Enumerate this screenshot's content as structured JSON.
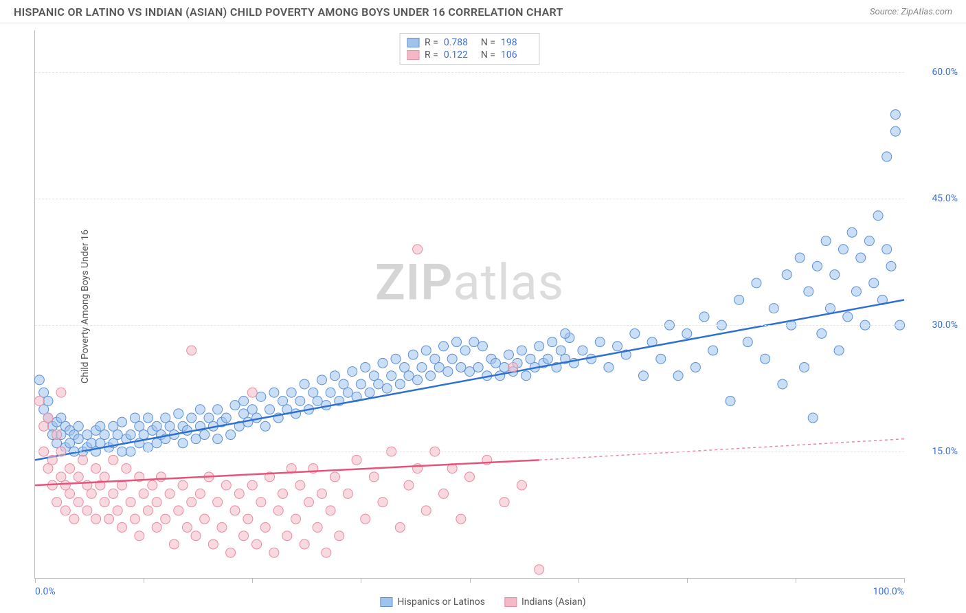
{
  "header": {
    "title": "HISPANIC OR LATINO VS INDIAN (ASIAN) CHILD POVERTY AMONG BOYS UNDER 16 CORRELATION CHART",
    "source_label": "Source:",
    "source_name": "ZipAtlas.com"
  },
  "watermark": {
    "prefix": "ZIP",
    "suffix": "atlas"
  },
  "chart": {
    "type": "scatter",
    "ylabel": "Child Poverty Among Boys Under 16",
    "xlim": [
      0,
      100
    ],
    "ylim": [
      0,
      65
    ],
    "y_ticks": [
      15,
      30,
      45,
      60
    ],
    "y_tick_labels": [
      "15.0%",
      "30.0%",
      "45.0%",
      "60.0%"
    ],
    "x_ticks": [
      0,
      12.5,
      25,
      37.5,
      50,
      62.5,
      75,
      87.5,
      100
    ],
    "x_tick_labels": {
      "0": "0.0%",
      "100": "100.0%"
    },
    "background_color": "#ffffff",
    "grid_color": "#e5e5e5",
    "axis_color": "#bbbbbb",
    "label_fontsize": 14,
    "tick_color": "#3b6fd6",
    "marker_radius": 7,
    "marker_opacity": 0.55,
    "series": [
      {
        "id": "hispanics",
        "label": "Hispanics or Latinos",
        "fill": "#9fc3ec",
        "stroke": "#5a8fd6",
        "R": "0.788",
        "N": "198",
        "trend": {
          "x1": 0,
          "y1": 14,
          "x2": 100,
          "y2": 33,
          "color": "#2f6fd0",
          "width": 2.5
        },
        "points": [
          [
            0.5,
            23.5
          ],
          [
            1,
            22
          ],
          [
            1,
            20
          ],
          [
            1.5,
            19
          ],
          [
            1.5,
            21
          ],
          [
            2,
            18
          ],
          [
            2,
            17
          ],
          [
            2.5,
            18.5
          ],
          [
            2.5,
            16
          ],
          [
            3,
            19
          ],
          [
            3,
            17
          ],
          [
            3.5,
            15.5
          ],
          [
            3.5,
            18
          ],
          [
            4,
            17.5
          ],
          [
            4,
            16
          ],
          [
            4.5,
            17
          ],
          [
            4.5,
            15
          ],
          [
            5,
            18
          ],
          [
            5,
            16.5
          ],
          [
            5.5,
            15
          ],
          [
            6,
            17
          ],
          [
            6,
            15.5
          ],
          [
            6.5,
            16
          ],
          [
            7,
            17.5
          ],
          [
            7,
            15
          ],
          [
            7.5,
            18
          ],
          [
            7.5,
            16
          ],
          [
            8,
            17
          ],
          [
            8.5,
            15.5
          ],
          [
            9,
            18
          ],
          [
            9,
            16
          ],
          [
            9.5,
            17
          ],
          [
            10,
            15
          ],
          [
            10,
            18.5
          ],
          [
            10.5,
            16.5
          ],
          [
            11,
            17
          ],
          [
            11,
            15
          ],
          [
            11.5,
            19
          ],
          [
            12,
            16
          ],
          [
            12,
            18
          ],
          [
            12.5,
            17
          ],
          [
            13,
            15.5
          ],
          [
            13,
            19
          ],
          [
            13.5,
            17.5
          ],
          [
            14,
            16
          ],
          [
            14,
            18
          ],
          [
            14.5,
            17
          ],
          [
            15,
            19
          ],
          [
            15,
            16.5
          ],
          [
            15.5,
            18
          ],
          [
            16,
            17
          ],
          [
            16.5,
            19.5
          ],
          [
            17,
            16
          ],
          [
            17,
            18
          ],
          [
            17.5,
            17.5
          ],
          [
            18,
            19
          ],
          [
            18.5,
            16.5
          ],
          [
            19,
            18
          ],
          [
            19,
            20
          ],
          [
            19.5,
            17
          ],
          [
            20,
            19
          ],
          [
            20.5,
            18
          ],
          [
            21,
            16.5
          ],
          [
            21,
            20
          ],
          [
            21.5,
            18.5
          ],
          [
            22,
            19
          ],
          [
            22.5,
            17
          ],
          [
            23,
            20.5
          ],
          [
            23.5,
            18
          ],
          [
            24,
            19.5
          ],
          [
            24,
            21
          ],
          [
            24.5,
            18.5
          ],
          [
            25,
            20
          ],
          [
            25.5,
            19
          ],
          [
            26,
            21.5
          ],
          [
            26.5,
            18
          ],
          [
            27,
            20
          ],
          [
            27.5,
            22
          ],
          [
            28,
            19
          ],
          [
            28.5,
            21
          ],
          [
            29,
            20
          ],
          [
            29.5,
            22
          ],
          [
            30,
            19.5
          ],
          [
            30.5,
            21
          ],
          [
            31,
            23
          ],
          [
            31.5,
            20
          ],
          [
            32,
            22
          ],
          [
            32.5,
            21
          ],
          [
            33,
            23.5
          ],
          [
            33.5,
            20.5
          ],
          [
            34,
            22
          ],
          [
            34.5,
            24
          ],
          [
            35,
            21
          ],
          [
            35.5,
            23
          ],
          [
            36,
            22
          ],
          [
            36.5,
            24.5
          ],
          [
            37,
            21.5
          ],
          [
            37.5,
            23
          ],
          [
            38,
            25
          ],
          [
            38.5,
            22
          ],
          [
            39,
            24
          ],
          [
            39.5,
            23
          ],
          [
            40,
            25.5
          ],
          [
            40.5,
            22.5
          ],
          [
            41,
            24
          ],
          [
            41.5,
            26
          ],
          [
            42,
            23
          ],
          [
            42.5,
            25
          ],
          [
            43,
            24
          ],
          [
            43.5,
            26.5
          ],
          [
            44,
            23.5
          ],
          [
            44.5,
            25
          ],
          [
            45,
            27
          ],
          [
            45.5,
            24
          ],
          [
            46,
            26
          ],
          [
            46.5,
            25
          ],
          [
            47,
            27.5
          ],
          [
            47.5,
            24.5
          ],
          [
            48,
            26
          ],
          [
            48.5,
            28
          ],
          [
            49,
            25
          ],
          [
            49.5,
            27
          ],
          [
            50,
            24.5
          ],
          [
            50.5,
            28
          ],
          [
            51,
            25
          ],
          [
            51.5,
            27.5
          ],
          [
            52,
            24
          ],
          [
            52.5,
            26
          ],
          [
            53,
            25.5
          ],
          [
            53.5,
            24
          ],
          [
            54,
            25
          ],
          [
            54.5,
            26.5
          ],
          [
            55,
            24.5
          ],
          [
            55.5,
            25.5
          ],
          [
            56,
            27
          ],
          [
            56.5,
            24
          ],
          [
            57,
            26
          ],
          [
            57.5,
            25
          ],
          [
            58,
            27.5
          ],
          [
            58.5,
            25.5
          ],
          [
            59,
            26
          ],
          [
            59.5,
            28
          ],
          [
            60,
            25
          ],
          [
            60.5,
            27
          ],
          [
            61,
            26
          ],
          [
            61.5,
            28.5
          ],
          [
            62,
            25.5
          ],
          [
            63,
            27
          ],
          [
            64,
            26
          ],
          [
            65,
            28
          ],
          [
            66,
            25
          ],
          [
            67,
            27.5
          ],
          [
            68,
            26.5
          ],
          [
            69,
            29
          ],
          [
            70,
            24
          ],
          [
            71,
            28
          ],
          [
            72,
            26
          ],
          [
            73,
            30
          ],
          [
            74,
            24
          ],
          [
            75,
            29
          ],
          [
            76,
            25
          ],
          [
            77,
            31
          ],
          [
            78,
            27
          ],
          [
            79,
            30
          ],
          [
            80,
            21
          ],
          [
            81,
            33
          ],
          [
            82,
            28
          ],
          [
            83,
            35
          ],
          [
            84,
            26
          ],
          [
            85,
            32
          ],
          [
            86,
            23
          ],
          [
            86.5,
            36
          ],
          [
            87,
            30
          ],
          [
            88,
            38
          ],
          [
            88.5,
            25
          ],
          [
            89,
            34
          ],
          [
            89.5,
            19
          ],
          [
            90,
            37
          ],
          [
            90.5,
            29
          ],
          [
            91,
            40
          ],
          [
            91.5,
            32
          ],
          [
            92,
            36
          ],
          [
            92.5,
            27
          ],
          [
            93,
            39
          ],
          [
            93.5,
            31
          ],
          [
            94,
            41
          ],
          [
            94.5,
            34
          ],
          [
            95,
            38
          ],
          [
            95.5,
            30
          ],
          [
            96,
            40
          ],
          [
            96.5,
            35
          ],
          [
            97,
            43
          ],
          [
            97.5,
            33
          ],
          [
            98,
            50
          ],
          [
            98.5,
            37
          ],
          [
            99,
            53
          ],
          [
            99.5,
            30
          ],
          [
            99,
            55
          ],
          [
            98,
            39
          ],
          [
            61,
            29
          ]
        ]
      },
      {
        "id": "indians",
        "label": "Indians (Asian)",
        "fill": "#f4b9c6",
        "stroke": "#e98aa0",
        "R": "0.122",
        "N": "106",
        "trend": {
          "x1": 0,
          "y1": 11,
          "x2": 58,
          "y2": 14,
          "color": "#e6537a",
          "width": 2.5,
          "extend_to": 100,
          "extend_y": 16.5
        },
        "points": [
          [
            0.5,
            21
          ],
          [
            1,
            18
          ],
          [
            1,
            15
          ],
          [
            1.5,
            13
          ],
          [
            1.5,
            19
          ],
          [
            2,
            11
          ],
          [
            2,
            14
          ],
          [
            2.5,
            17
          ],
          [
            2.5,
            9
          ],
          [
            3,
            12
          ],
          [
            3,
            15
          ],
          [
            3.5,
            8
          ],
          [
            3.5,
            11
          ],
          [
            4,
            13
          ],
          [
            4,
            10
          ],
          [
            4.5,
            7
          ],
          [
            5,
            12
          ],
          [
            5,
            9
          ],
          [
            5.5,
            14
          ],
          [
            6,
            8
          ],
          [
            6,
            11
          ],
          [
            6.5,
            10
          ],
          [
            7,
            13
          ],
          [
            7,
            7
          ],
          [
            7.5,
            11
          ],
          [
            8,
            9
          ],
          [
            8,
            12
          ],
          [
            8.5,
            7
          ],
          [
            9,
            10
          ],
          [
            9,
            14
          ],
          [
            9.5,
            8
          ],
          [
            10,
            11
          ],
          [
            10,
            6
          ],
          [
            10.5,
            13
          ],
          [
            11,
            9
          ],
          [
            11.5,
            7
          ],
          [
            12,
            12
          ],
          [
            12,
            5
          ],
          [
            12.5,
            10
          ],
          [
            13,
            8
          ],
          [
            13.5,
            11
          ],
          [
            14,
            6
          ],
          [
            14,
            9
          ],
          [
            14.5,
            12
          ],
          [
            15,
            7
          ],
          [
            15.5,
            10
          ],
          [
            16,
            4
          ],
          [
            16.5,
            8
          ],
          [
            17,
            11
          ],
          [
            17.5,
            6
          ],
          [
            18,
            9
          ],
          [
            18.5,
            5
          ],
          [
            19,
            10
          ],
          [
            19.5,
            7
          ],
          [
            20,
            12
          ],
          [
            20.5,
            4
          ],
          [
            21,
            9
          ],
          [
            21.5,
            6
          ],
          [
            22,
            11
          ],
          [
            22.5,
            3
          ],
          [
            23,
            8
          ],
          [
            23.5,
            10
          ],
          [
            24,
            5
          ],
          [
            24.5,
            7
          ],
          [
            25,
            11
          ],
          [
            25.5,
            4
          ],
          [
            26,
            9
          ],
          [
            26.5,
            6
          ],
          [
            27,
            12
          ],
          [
            27.5,
            3
          ],
          [
            28,
            8
          ],
          [
            28.5,
            10
          ],
          [
            29,
            5
          ],
          [
            29.5,
            13
          ],
          [
            30,
            7
          ],
          [
            30.5,
            11
          ],
          [
            31,
            4
          ],
          [
            31.5,
            9
          ],
          [
            32,
            13
          ],
          [
            32.5,
            6
          ],
          [
            33,
            10
          ],
          [
            33.5,
            3
          ],
          [
            34,
            8
          ],
          [
            34.5,
            12
          ],
          [
            35,
            5
          ],
          [
            36,
            10
          ],
          [
            37,
            14
          ],
          [
            38,
            7
          ],
          [
            39,
            12
          ],
          [
            40,
            9
          ],
          [
            41,
            15
          ],
          [
            42,
            6
          ],
          [
            43,
            11
          ],
          [
            44,
            13
          ],
          [
            45,
            8
          ],
          [
            46,
            15
          ],
          [
            47,
            10
          ],
          [
            48,
            13
          ],
          [
            49,
            7
          ],
          [
            50,
            12
          ],
          [
            52,
            14
          ],
          [
            54,
            9
          ],
          [
            55,
            25
          ],
          [
            56,
            11
          ],
          [
            58,
            1
          ],
          [
            44,
            39
          ],
          [
            18,
            27
          ],
          [
            25,
            22
          ],
          [
            3,
            22
          ]
        ]
      }
    ]
  },
  "stats_box": {
    "r_label": "R =",
    "n_label": "N ="
  },
  "legend": {
    "items": [
      {
        "label": "Hispanics or Latinos",
        "fill": "#9fc3ec",
        "stroke": "#5a8fd6"
      },
      {
        "label": "Indians (Asian)",
        "fill": "#f4b9c6",
        "stroke": "#e98aa0"
      }
    ]
  }
}
